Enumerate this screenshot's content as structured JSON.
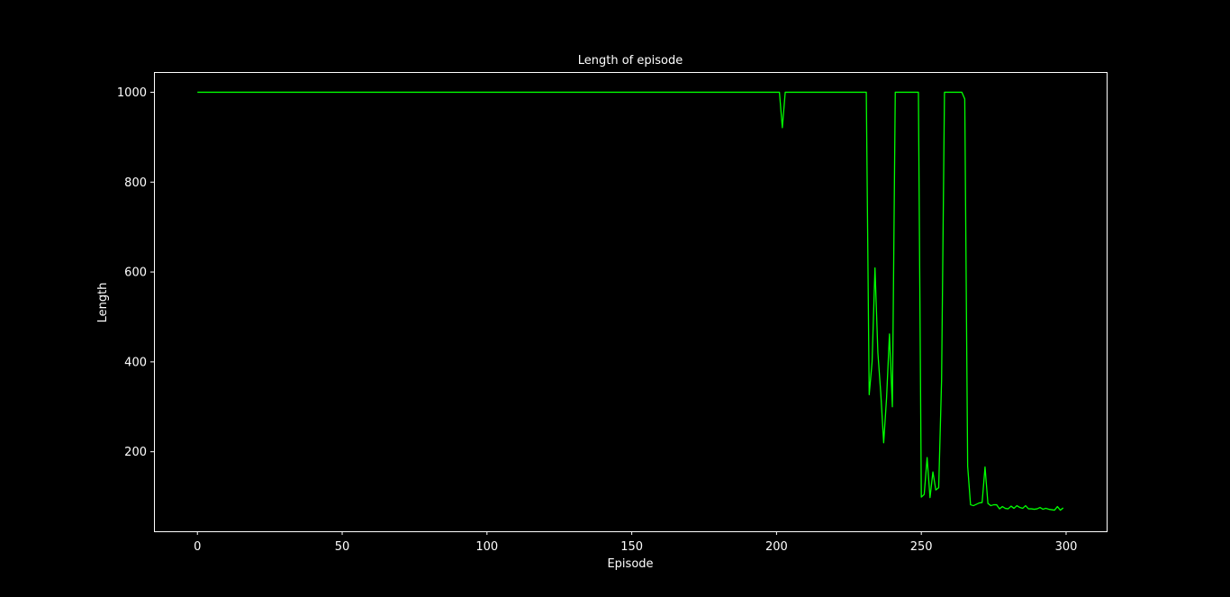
{
  "colors": {
    "background": "#000000",
    "foreground": "#ffffff",
    "line": "#00ff00"
  },
  "chart_data": {
    "type": "line",
    "title": "Length of episode",
    "xlabel": "Episode",
    "ylabel": "Length",
    "xlim": [
      -15,
      314
    ],
    "ylim": [
      23,
      1045
    ],
    "xticks": [
      0,
      50,
      100,
      150,
      200,
      250,
      300
    ],
    "yticks": [
      200,
      400,
      600,
      800,
      1000
    ],
    "grid": false,
    "series": [
      {
        "points": [
          [
            0,
            1000
          ],
          [
            201,
            1000
          ],
          [
            202,
            921
          ],
          [
            203,
            1000
          ],
          [
            231,
            1000
          ],
          [
            232,
            327
          ],
          [
            233,
            400
          ],
          [
            234,
            609
          ],
          [
            235,
            420
          ],
          [
            236,
            330
          ],
          [
            237,
            220
          ],
          [
            238,
            320
          ],
          [
            239,
            462
          ],
          [
            240,
            300
          ],
          [
            241,
            1000
          ],
          [
            249,
            1000
          ],
          [
            250,
            99
          ],
          [
            251,
            105
          ],
          [
            252,
            187
          ],
          [
            253,
            98
          ],
          [
            254,
            155
          ],
          [
            255,
            115
          ],
          [
            256,
            120
          ],
          [
            257,
            360
          ],
          [
            258,
            1000
          ],
          [
            264,
            1000
          ],
          [
            265,
            985
          ],
          [
            266,
            168
          ],
          [
            267,
            82
          ],
          [
            268,
            80
          ],
          [
            269,
            83
          ],
          [
            270,
            86
          ],
          [
            271,
            87
          ],
          [
            272,
            166
          ],
          [
            273,
            85
          ],
          [
            274,
            80
          ],
          [
            275,
            82
          ],
          [
            276,
            82
          ],
          [
            277,
            73
          ],
          [
            278,
            78
          ],
          [
            279,
            74
          ],
          [
            280,
            73
          ],
          [
            281,
            79
          ],
          [
            282,
            74
          ],
          [
            283,
            80
          ],
          [
            284,
            76
          ],
          [
            285,
            74
          ],
          [
            286,
            80
          ],
          [
            287,
            73
          ],
          [
            288,
            73
          ],
          [
            289,
            72
          ],
          [
            290,
            73
          ],
          [
            291,
            76
          ],
          [
            292,
            72
          ],
          [
            293,
            74
          ],
          [
            294,
            72
          ],
          [
            295,
            71
          ],
          [
            296,
            70
          ],
          [
            297,
            78
          ],
          [
            298,
            70
          ],
          [
            299,
            75
          ]
        ]
      }
    ]
  }
}
